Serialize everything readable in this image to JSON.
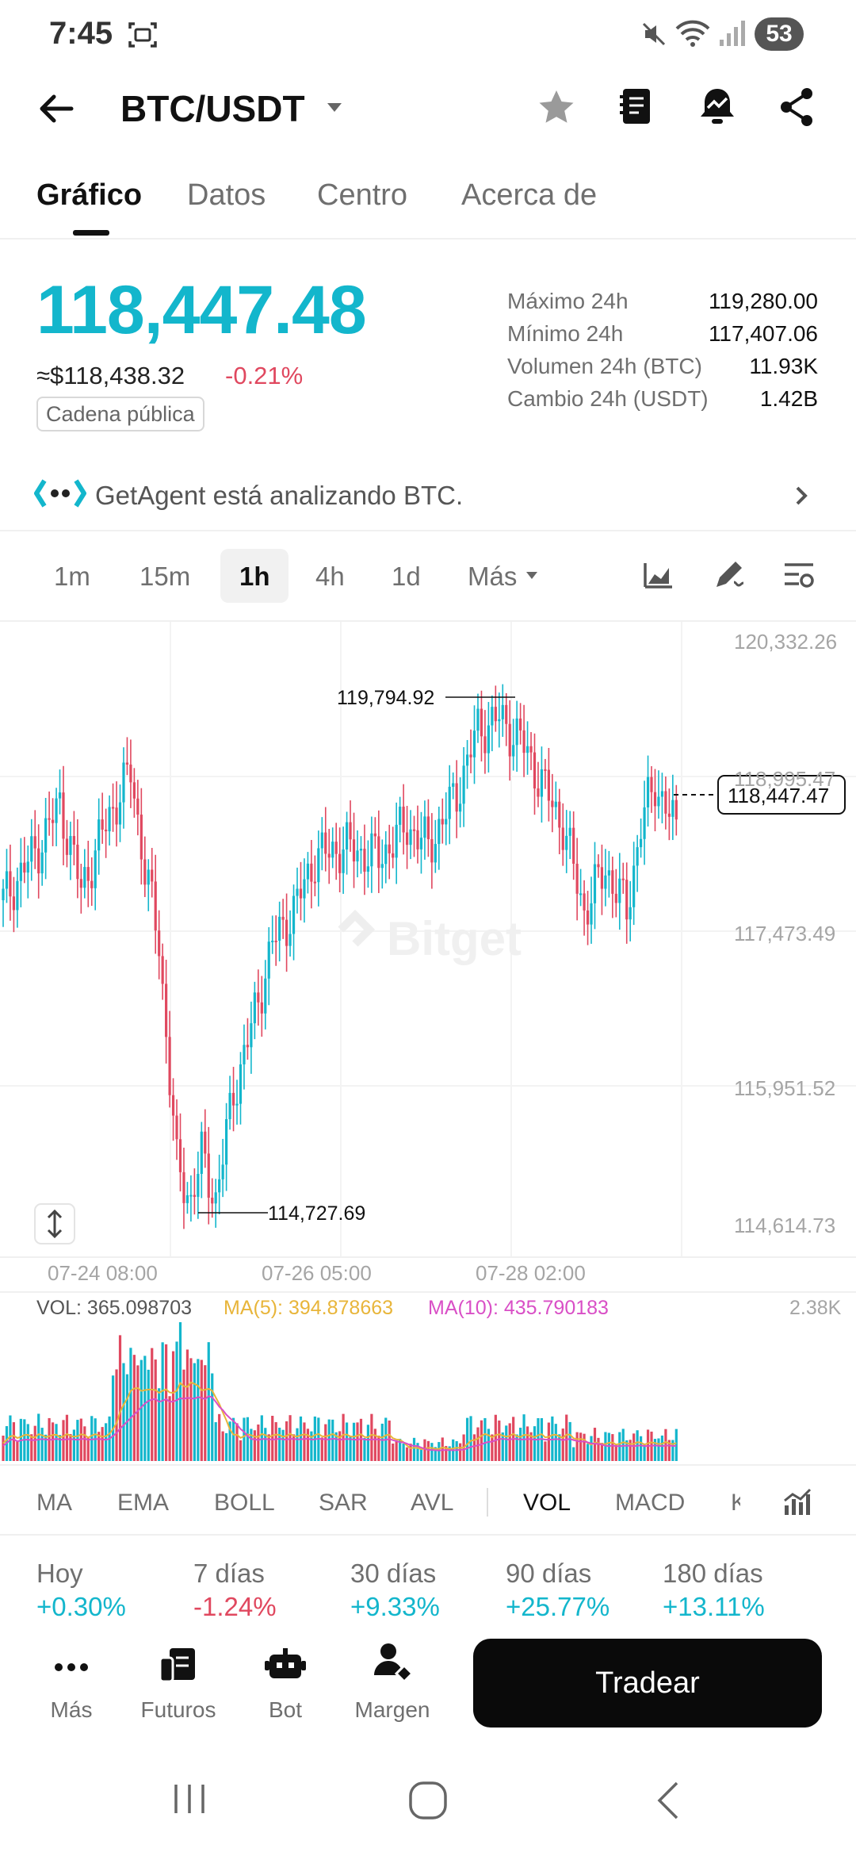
{
  "status_bar": {
    "time": "7:45",
    "battery": "53"
  },
  "header": {
    "pair": "BTC/USDT"
  },
  "tabs": [
    {
      "label": "Gráfico",
      "active": true
    },
    {
      "label": "Datos",
      "active": false
    },
    {
      "label": "Centro",
      "active": false
    },
    {
      "label": "Acerca de",
      "active": false
    }
  ],
  "price": {
    "last": "118,447.48",
    "usd": "≈$118,438.32",
    "change": "-0.21%",
    "chain_badge": "Cadena pública",
    "up_color": "#13b6cc",
    "down_color": "#e0485f"
  },
  "stats": [
    {
      "label": "Máximo 24h",
      "value": "119,280.00"
    },
    {
      "label": "Mínimo 24h",
      "value": "117,407.06"
    },
    {
      "label": "Volumen 24h (BTC)",
      "value": "11.93K"
    },
    {
      "label": "Cambio 24h (USDT)",
      "value": "1.42B"
    }
  ],
  "agent_banner": {
    "text": "GetAgent está analizando BTC."
  },
  "timeframes": [
    {
      "label": "1m",
      "active": false
    },
    {
      "label": "15m",
      "active": false
    },
    {
      "label": "1h",
      "active": true
    },
    {
      "label": "4h",
      "active": false
    },
    {
      "label": "1d",
      "active": false
    },
    {
      "label": "Más",
      "active": false
    }
  ],
  "chart": {
    "watermark": "Bitget",
    "y_labels": [
      "120,332.26",
      "118,995.47",
      "117,473.49",
      "115,951.52",
      "114,614.73"
    ],
    "x_labels": [
      "07-24 08:00",
      "07-26 05:00",
      "07-28 02:00"
    ],
    "high_marker": "119,794.92",
    "low_marker": "114,727.69",
    "last_price_tag": "118,447.47"
  },
  "volume": {
    "vol_label": "VOL: 365.098703",
    "ma5_label": "MA(5): 394.878663",
    "ma10_label": "MA(10): 435.790183",
    "max_label": "2.38K",
    "ma5_color": "#e8b53a",
    "ma10_color": "#d94fc6"
  },
  "indicator_tabs": [
    {
      "label": "MA",
      "active": false
    },
    {
      "label": "EMA",
      "active": false
    },
    {
      "label": "BOLL",
      "active": false
    },
    {
      "label": "SAR",
      "active": false
    },
    {
      "label": "AVL",
      "active": false
    },
    {
      "label": "VOL",
      "active": true
    },
    {
      "label": "MACD",
      "active": false
    },
    {
      "label": "K",
      "active": false
    }
  ],
  "periods": [
    {
      "label": "Hoy",
      "value": "+0.30%",
      "up": true
    },
    {
      "label": "7 días",
      "value": "-1.24%",
      "up": false
    },
    {
      "label": "30 días",
      "value": "+9.33%",
      "up": true
    },
    {
      "label": "90 días",
      "value": "+25.77%",
      "up": true
    },
    {
      "label": "180 días",
      "value": "+13.11%",
      "up": true
    }
  ],
  "bottom_nav": [
    {
      "label": "Más",
      "icon": "more-dots-icon"
    },
    {
      "label": "Futuros",
      "icon": "futures-icon"
    },
    {
      "label": "Bot",
      "icon": "bot-icon"
    },
    {
      "label": "Margen",
      "icon": "margin-icon"
    }
  ],
  "trade_button": {
    "label": "Tradear"
  },
  "chart_data": {
    "type": "candlestick",
    "y_range": [
      114614.73,
      120332.26
    ],
    "highest": 119794.92,
    "lowest": 114727.69,
    "last": 118447.47,
    "x_ticks": [
      "07-24 08:00",
      "07-26 05:00",
      "07-28 02:00"
    ],
    "grid": true
  }
}
